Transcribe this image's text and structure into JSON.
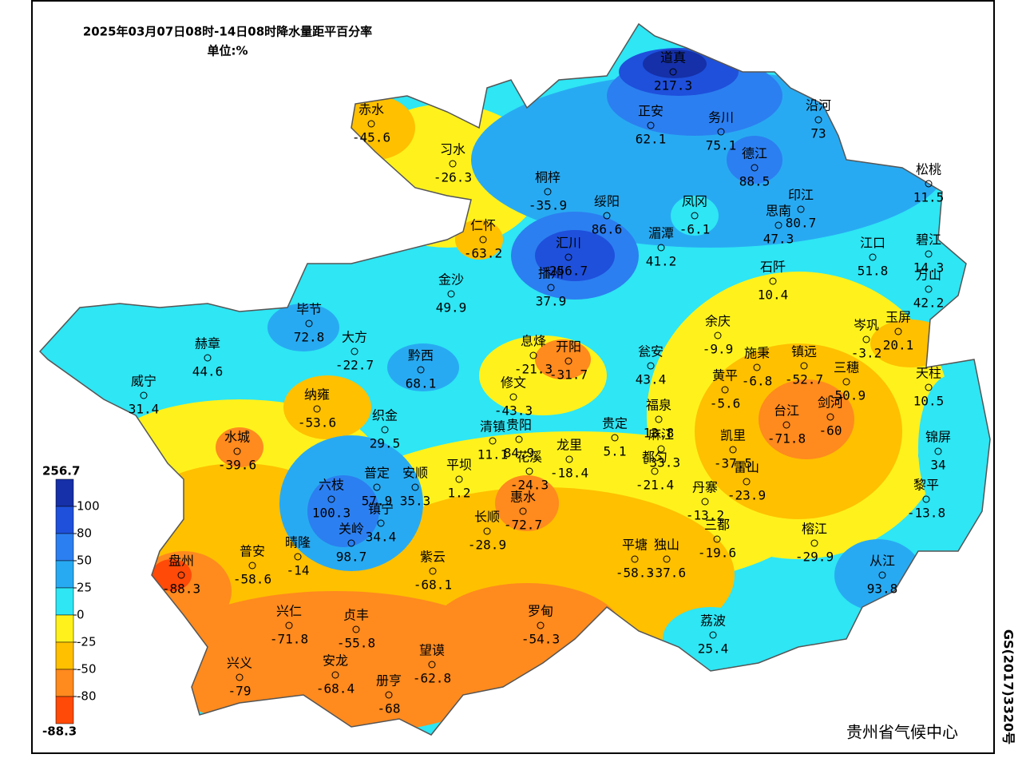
{
  "header": {
    "title": "2025年03月07日08时-14日08时降水量距平百分率",
    "unit": "单位:%"
  },
  "legend": {
    "max": "256.7",
    "min": "-88.3",
    "ticks": [
      100,
      80,
      50,
      25,
      0,
      -25,
      -50,
      -80
    ],
    "colors": [
      "#1530a8",
      "#1e50dc",
      "#2c7ff0",
      "#28aaf2",
      "#2ee6f4",
      "#fff21c",
      "#ffc000",
      "#ff8a1e",
      "#ff4a08"
    ]
  },
  "stations": [
    {
      "name": "赤水",
      "value": -45.6
    },
    {
      "name": "习水",
      "value": -26.3
    },
    {
      "name": "桐梓",
      "value": -35.9
    },
    {
      "name": "道真",
      "value": 217.3
    },
    {
      "name": "正安",
      "value": 62.1
    },
    {
      "name": "务川",
      "value": 75.1
    },
    {
      "name": "沿河",
      "value": 73
    },
    {
      "name": "德江",
      "value": 88.5
    },
    {
      "name": "松桃",
      "value": 11.5
    },
    {
      "name": "仁怀",
      "value": -63.2
    },
    {
      "name": "绥阳",
      "value": 86.6
    },
    {
      "name": "凤冈",
      "value": -6.1
    },
    {
      "name": "印江",
      "value": 80.7
    },
    {
      "name": "思南",
      "value": 47.3
    },
    {
      "name": "汇川",
      "value": 256.7
    },
    {
      "name": "湄潭",
      "value": 41.2
    },
    {
      "name": "江口",
      "value": 51.8
    },
    {
      "name": "碧江",
      "value": 14.3
    },
    {
      "name": "万山",
      "value": 42.2
    },
    {
      "name": "播州",
      "value": 37.9
    },
    {
      "name": "金沙",
      "value": 49.9
    },
    {
      "name": "石阡",
      "value": 10.4
    },
    {
      "name": "毕节",
      "value": 72.8
    },
    {
      "name": "大方",
      "value": -22.7
    },
    {
      "name": "余庆",
      "value": -9.9
    },
    {
      "name": "岑巩",
      "value": -3.2
    },
    {
      "name": "玉屏",
      "value": 20.1
    },
    {
      "name": "赫章",
      "value": 44.6
    },
    {
      "name": "黔西",
      "value": 68.1
    },
    {
      "name": "息烽",
      "value": -21.3
    },
    {
      "name": "开阳",
      "value": -31.7
    },
    {
      "name": "瓮安",
      "value": 43.4
    },
    {
      "name": "施秉",
      "value": -6.8
    },
    {
      "name": "镇远",
      "value": -52.7
    },
    {
      "name": "三穗",
      "value": -50.9
    },
    {
      "name": "天柱",
      "value": 10.5
    },
    {
      "name": "威宁",
      "value": 31.4
    },
    {
      "name": "黄平",
      "value": -5.6
    },
    {
      "name": "修文",
      "value": -43.3
    },
    {
      "name": "纳雍",
      "value": -53.6
    },
    {
      "name": "福泉",
      "value": 13.8
    },
    {
      "name": "剑河",
      "value": -60
    },
    {
      "name": "台江",
      "value": -71.8
    },
    {
      "name": "织金",
      "value": 29.5
    },
    {
      "name": "清镇",
      "value": 11.1
    },
    {
      "name": "贵阳",
      "value": 84.9
    },
    {
      "name": "花溪",
      "value": -24.3
    },
    {
      "name": "龙里",
      "value": -18.4
    },
    {
      "name": "贵定",
      "value": 5.1
    },
    {
      "name": "凯里",
      "value": -37.5
    },
    {
      "name": "麻江",
      "value": -33.3
    },
    {
      "name": "雷山",
      "value": -23.9
    },
    {
      "name": "水城",
      "value": -39.6
    },
    {
      "name": "锦屏",
      "value": 34
    },
    {
      "name": "平坝",
      "value": 1.2
    },
    {
      "name": "六枝",
      "value": 100.3
    },
    {
      "name": "普定",
      "value": 57.9
    },
    {
      "name": "安顺",
      "value": 35.3
    },
    {
      "name": "镇宁",
      "value": 34.4
    },
    {
      "name": "都匀",
      "value": -21.4
    },
    {
      "name": "丹寨",
      "value": -13.2
    },
    {
      "name": "惠水",
      "value": -72.7
    },
    {
      "name": "长顺",
      "value": -28.9
    },
    {
      "name": "黎平",
      "value": -13.8
    },
    {
      "name": "关岭",
      "value": 98.7
    },
    {
      "name": "三都",
      "value": -19.6
    },
    {
      "name": "晴隆",
      "value": -14
    },
    {
      "name": "平塘",
      "value": -58.3
    },
    {
      "name": "独山",
      "value": -37.6
    },
    {
      "name": "榕江",
      "value": -29.9
    },
    {
      "name": "盘州",
      "value": -88.3
    },
    {
      "name": "普安",
      "value": -58.6
    },
    {
      "name": "紫云",
      "value": -68.1
    },
    {
      "name": "从江",
      "value": 93.8
    },
    {
      "name": "兴仁",
      "value": -71.8
    },
    {
      "name": "贞丰",
      "value": -55.8
    },
    {
      "name": "罗甸",
      "value": -54.3
    },
    {
      "name": "荔波",
      "value": 25.4
    },
    {
      "name": "望谟",
      "value": -62.8
    },
    {
      "name": "兴义",
      "value": -79
    },
    {
      "name": "安龙",
      "value": -68.4
    },
    {
      "name": "册亨",
      "value": -68
    }
  ],
  "footer": {
    "credit": "贵州省气候中心",
    "code": "GS(2017)3320号"
  }
}
